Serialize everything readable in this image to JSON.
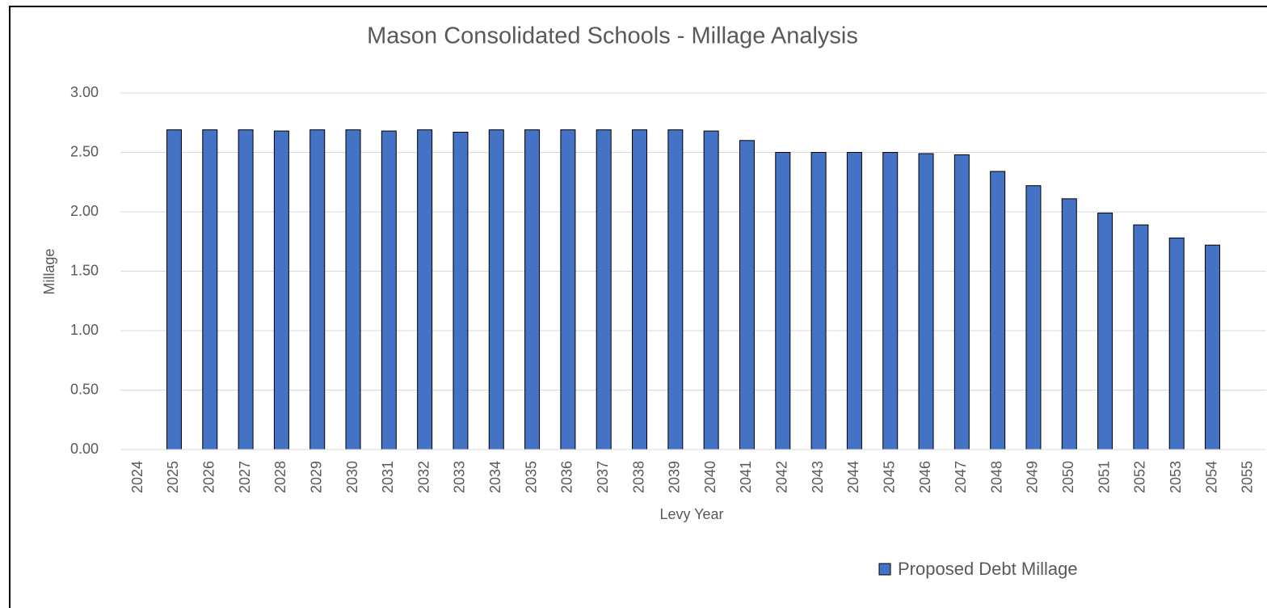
{
  "chart_data": {
    "type": "bar",
    "title": "Mason Consolidated Schools - Millage Analysis",
    "x_label": "Levy Year",
    "y_label": "Millage",
    "categories": [
      "2024",
      "2025",
      "2026",
      "2027",
      "2028",
      "2029",
      "2030",
      "2031",
      "2032",
      "2033",
      "2034",
      "2035",
      "2036",
      "2037",
      "2038",
      "2039",
      "2040",
      "2041",
      "2042",
      "2043",
      "2044",
      "2045",
      "2046",
      "2047",
      "2048",
      "2049",
      "2050",
      "2051",
      "2052",
      "2053",
      "2054",
      "2055"
    ],
    "series": [
      {
        "name": "Proposed Debt Millage",
        "color": "#4472c4",
        "values": [
          null,
          2.69,
          2.69,
          2.69,
          2.68,
          2.69,
          2.69,
          2.68,
          2.69,
          2.67,
          2.69,
          2.69,
          2.69,
          2.69,
          2.69,
          2.69,
          2.68,
          2.6,
          2.5,
          2.5,
          2.5,
          2.5,
          2.49,
          2.48,
          2.34,
          2.22,
          2.11,
          1.99,
          1.89,
          1.78,
          1.72,
          null
        ]
      }
    ],
    "ylim": [
      0,
      3
    ],
    "yticks": [
      {
        "value": 0,
        "label": "0.00"
      },
      {
        "value": 0.5,
        "label": "0.50"
      },
      {
        "value": 1,
        "label": "1.00"
      },
      {
        "value": 1.5,
        "label": "1.50"
      },
      {
        "value": 2,
        "label": "2.00"
      },
      {
        "value": 2.5,
        "label": "2.50"
      },
      {
        "value": 3,
        "label": "3.00"
      }
    ],
    "grid": true,
    "legend": "bottom"
  }
}
